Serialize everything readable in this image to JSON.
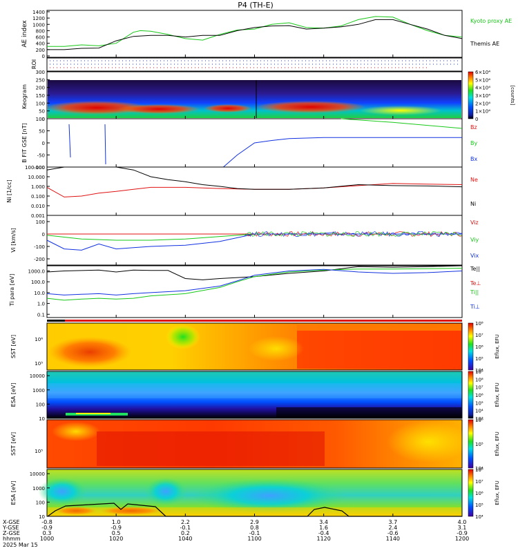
{
  "title": "P4 (TH-E)",
  "footer": {
    "row_labels": [
      "X-GSE",
      "Y-GSE",
      "Z-GSE",
      "hhmm",
      "2025 Mar 15"
    ],
    "xtick_values": [
      [
        "-0.8",
        "-0.9",
        "0.3",
        "1000"
      ],
      [
        "1.0",
        "-0.9",
        "0.5",
        "1020"
      ],
      [
        "2.2",
        "-0.1",
        "0.2",
        "1040"
      ],
      [
        "2.9",
        "0.8",
        "-0.1",
        "1100"
      ],
      [
        "3.4",
        "1.6",
        "-0.4",
        "1120"
      ],
      [
        "3.7",
        "2.4",
        "-0.6",
        "1140"
      ],
      [
        "4.0",
        "3.1",
        "-0.9",
        "1200"
      ]
    ]
  },
  "colors": {
    "green": "#16c816",
    "black": "#000000",
    "red": "#e01010",
    "blue": "#1030e0",
    "orange": "#ff8c00"
  },
  "chart_data": [
    {
      "name": "ae-index",
      "type": "line",
      "ylabel": "AE index",
      "ylim": [
        0,
        1400
      ],
      "yticks": [
        "0",
        "200",
        "400",
        "600",
        "800",
        "1000",
        "1200",
        "1400"
      ],
      "legend": [
        "Kyoto proxy AE",
        "Themis AE"
      ],
      "series": [
        {
          "name": "Kyoto proxy AE",
          "color": "green",
          "x": [
            0,
            5,
            10,
            15,
            20,
            25,
            27,
            30,
            35,
            40,
            45,
            50,
            55,
            60,
            65,
            70,
            75,
            80,
            85,
            90,
            95,
            100,
            105,
            110,
            115,
            120
          ],
          "values": [
            300,
            300,
            350,
            320,
            400,
            750,
            800,
            780,
            680,
            550,
            500,
            680,
            820,
            850,
            1000,
            1050,
            900,
            880,
            950,
            1150,
            1250,
            1230,
            1000,
            800,
            650,
            600
          ]
        },
        {
          "name": "Themis AE",
          "color": "black",
          "x": [
            0,
            5,
            10,
            15,
            20,
            25,
            30,
            35,
            40,
            45,
            50,
            55,
            60,
            65,
            70,
            75,
            80,
            85,
            90,
            95,
            100,
            105,
            110,
            115,
            120
          ],
          "values": [
            200,
            200,
            240,
            250,
            480,
            620,
            650,
            650,
            600,
            650,
            650,
            800,
            900,
            950,
            960,
            850,
            880,
            920,
            1000,
            1150,
            1150,
            1000,
            850,
            650,
            550
          ]
        }
      ]
    },
    {
      "name": "roi",
      "type": "line",
      "ylabel": "ROI",
      "series": [
        {
          "name": "ROI-blue",
          "color": "blue",
          "x": [
            0,
            120
          ],
          "values": [
            1,
            1
          ]
        },
        {
          "name": "ROI-red",
          "color": "red",
          "x": [
            0,
            90
          ],
          "values": [
            1,
            1
          ]
        }
      ]
    },
    {
      "name": "keogram",
      "type": "heatmap",
      "ylabel": "Keogram",
      "ylim": [
        0,
        300
      ],
      "yticks": [
        "0",
        "50",
        "100",
        "150",
        "200",
        "250",
        "300"
      ],
      "colorbar": {
        "label": "[counts]",
        "ticks": [
          "0",
          "1×10⁴",
          "2×10⁴",
          "3×10⁴",
          "4×10⁴",
          "5×10⁴",
          "6×10⁴"
        ]
      }
    },
    {
      "name": "b-field",
      "type": "line",
      "ylabel": "B FIT GSE [nT]",
      "ylim": [
        -100,
        100
      ],
      "yticks": [
        "-100",
        "-50",
        "0",
        "50",
        "100"
      ],
      "legend": [
        "Bz",
        "By",
        "Bx"
      ],
      "series": [
        {
          "name": "Bz",
          "color": "red",
          "x": [
            0,
            120
          ],
          "values": [
            null,
            null
          ]
        },
        {
          "name": "By",
          "color": "green",
          "x": [
            85,
            100,
            120
          ],
          "values": [
            100,
            85,
            60
          ]
        },
        {
          "name": "Bx",
          "color": "blue",
          "x": [
            51,
            55,
            60,
            65,
            70,
            80,
            100,
            120
          ],
          "values": [
            -100,
            -50,
            0,
            10,
            18,
            22,
            22,
            22
          ]
        }
      ]
    },
    {
      "name": "density",
      "type": "line",
      "ylabel": "Ni [1/cc]",
      "ylim": [
        0.001,
        100
      ],
      "scale": "log",
      "yticks": [
        "0.001",
        "0.010",
        "0.100",
        "1.000",
        "10.000",
        "100.000"
      ],
      "legend": [
        "Ne",
        "Ni"
      ],
      "series": [
        {
          "name": "Ne",
          "color": "red",
          "x": [
            0,
            5,
            10,
            15,
            20,
            25,
            30,
            40,
            50,
            60,
            70,
            80,
            90,
            100,
            110,
            120
          ],
          "values": [
            0.8,
            0.08,
            0.1,
            0.2,
            0.3,
            0.5,
            0.8,
            0.8,
            0.6,
            0.5,
            0.5,
            0.7,
            1.2,
            2.0,
            1.7,
            1.5
          ]
        },
        {
          "name": "Ni",
          "color": "black",
          "x": [
            0,
            5,
            10,
            20,
            25,
            30,
            35,
            40,
            45,
            50,
            55,
            60,
            70,
            80,
            90,
            100,
            110,
            120
          ],
          "values": [
            50,
            100,
            100,
            100,
            50,
            10,
            5,
            3,
            1.5,
            1,
            0.6,
            0.5,
            0.5,
            0.7,
            1.5,
            1.2,
            1.1,
            0.9
          ]
        }
      ]
    },
    {
      "name": "velocity",
      "type": "line",
      "ylabel": "Vi [km/s]",
      "ylim": [
        -250,
        150
      ],
      "yticks": [
        "-200",
        "-100",
        "0",
        "100"
      ],
      "legend": [
        "Viz",
        "Viy",
        "Vix"
      ],
      "series": [
        {
          "name": "Viz",
          "color": "red",
          "x": [
            0,
            60,
            120
          ],
          "values": [
            0,
            0,
            0
          ]
        },
        {
          "name": "Viy",
          "color": "green",
          "x": [
            0,
            10,
            20,
            30,
            40,
            50,
            60,
            120
          ],
          "values": [
            -10,
            -40,
            -50,
            -50,
            -40,
            -20,
            0,
            0
          ]
        },
        {
          "name": "Vix",
          "color": "blue",
          "x": [
            0,
            5,
            10,
            15,
            20,
            25,
            30,
            40,
            50,
            60,
            120
          ],
          "values": [
            -50,
            -120,
            -130,
            -80,
            -120,
            -110,
            -100,
            -90,
            -60,
            0,
            0
          ]
        }
      ]
    },
    {
      "name": "temperature",
      "type": "line",
      "ylabel": "Ti para [eV]",
      "ylim": [
        0.05,
        3000
      ],
      "scale": "log",
      "yticks": [
        "0.1",
        "1.0",
        "10.0",
        "100.0",
        "1000.0"
      ],
      "legend": [
        "Te||",
        "Te⊥",
        "Ti||",
        "Ti⊥"
      ],
      "series": [
        {
          "name": "Te||",
          "color": "black",
          "x": [
            0,
            5,
            15,
            20,
            25,
            30,
            35,
            40,
            45,
            50,
            60,
            70,
            80,
            90,
            100,
            110,
            120
          ],
          "values": [
            800,
            1000,
            1200,
            800,
            1200,
            1100,
            1100,
            200,
            150,
            200,
            300,
            600,
            1000,
            2500,
            2200,
            2500,
            3000
          ]
        },
        {
          "name": "Te⊥",
          "color": "red",
          "x": [
            0,
            120
          ],
          "values": [
            null,
            null
          ]
        },
        {
          "name": "Ti||",
          "color": "green",
          "x": [
            0,
            5,
            10,
            15,
            20,
            25,
            30,
            40,
            50,
            55,
            60,
            70,
            80,
            90,
            100,
            110,
            120
          ],
          "values": [
            3,
            2,
            2.5,
            3,
            2.5,
            3,
            5,
            8,
            30,
            100,
            300,
            800,
            1200,
            1500,
            1500,
            1600,
            1800
          ]
        },
        {
          "name": "Ti⊥",
          "color": "blue",
          "x": [
            0,
            5,
            10,
            15,
            20,
            25,
            30,
            40,
            50,
            55,
            60,
            70,
            80,
            90,
            100,
            110,
            120
          ],
          "values": [
            8,
            6,
            7,
            8,
            6,
            8,
            10,
            15,
            40,
            120,
            400,
            1000,
            1400,
            800,
            600,
            700,
            1000
          ]
        }
      ]
    },
    {
      "name": "sst-electrons",
      "type": "heatmap",
      "ylabel": "SST [eV]",
      "yticks": [
        "10⁶",
        "10⁵"
      ],
      "colorbar": {
        "label": "Eflux, EFU",
        "ticks": [
          "10⁴",
          "10⁵",
          "10⁶",
          "10⁷",
          "10⁸"
        ]
      }
    },
    {
      "name": "esa-electrons",
      "type": "heatmap",
      "ylabel": "ESA [eV]",
      "yticks": [
        "10",
        "100",
        "1000",
        "10000"
      ],
      "colorbar": {
        "label": "Eflux, EFU",
        "ticks": [
          "10³",
          "10⁴",
          "10⁵",
          "10⁶",
          "10⁷",
          "10⁸",
          "10⁹"
        ]
      }
    },
    {
      "name": "sst-ions",
      "type": "heatmap",
      "ylabel": "SST [eV]",
      "yticks": [
        "10⁵"
      ],
      "colorbar": {
        "label": "Eflux, EFU",
        "ticks": [
          "10⁴",
          "10⁵",
          "10⁶"
        ]
      }
    },
    {
      "name": "esa-ions",
      "type": "heatmap",
      "ylabel": "ESA [eV]",
      "yticks": [
        "10",
        "100",
        "1000",
        "10000"
      ],
      "colorbar": {
        "label": "Eflux, EFU",
        "ticks": [
          "10⁴",
          "10⁵",
          "10⁶",
          "10⁷",
          "10⁸"
        ]
      }
    }
  ]
}
